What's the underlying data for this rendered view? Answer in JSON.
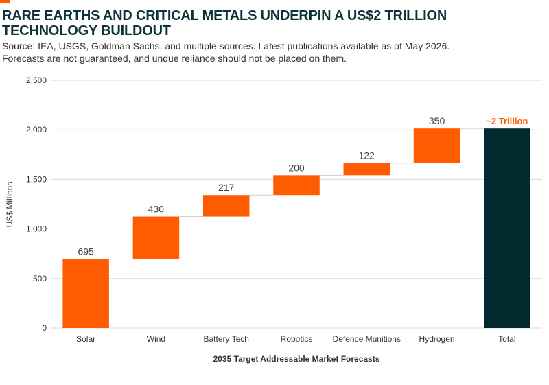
{
  "header": {
    "title_line1": "RARE EARTHS AND CRITICAL METALS UNDERPIN A US$2 TRILLION",
    "title_line2": "TECHNOLOGY BUILDOUT",
    "source_line1": "Source: IEA, USGS, Goldman Sachs, and multiple sources. Latest publications available as of May 2026.",
    "source_line2": "Forecasts are not guaranteed, and undue reliance should not be placed on them."
  },
  "colors": {
    "accent": "#ff5b00",
    "increment": "#ff5b00",
    "total": "#02292e",
    "title": "#0d3239",
    "grid": "#d9d9d9"
  },
  "chart_data": {
    "type": "bar",
    "subtype": "waterfall",
    "xlabel": "2035 Target Addressable Market Forecasts",
    "ylabel": "US$ Millions",
    "ylim": [
      0,
      2500
    ],
    "yticks": [
      0,
      500,
      1000,
      1500,
      2000,
      2500
    ],
    "ytick_labels": [
      "0",
      "500",
      "1,000",
      "1,500",
      "2,000",
      "2,500"
    ],
    "grid": true,
    "categories": [
      "Solar",
      "Wind",
      "Battery Tech",
      "Robotics",
      "Defence Munitions",
      "Hydrogen",
      "Total"
    ],
    "values": [
      695,
      430,
      217,
      200,
      122,
      350,
      2014
    ],
    "data_labels": [
      "695",
      "430",
      "217",
      "200",
      "122",
      "350",
      "~2 Trillion"
    ],
    "is_total": [
      false,
      false,
      false,
      false,
      false,
      false,
      true
    ]
  }
}
